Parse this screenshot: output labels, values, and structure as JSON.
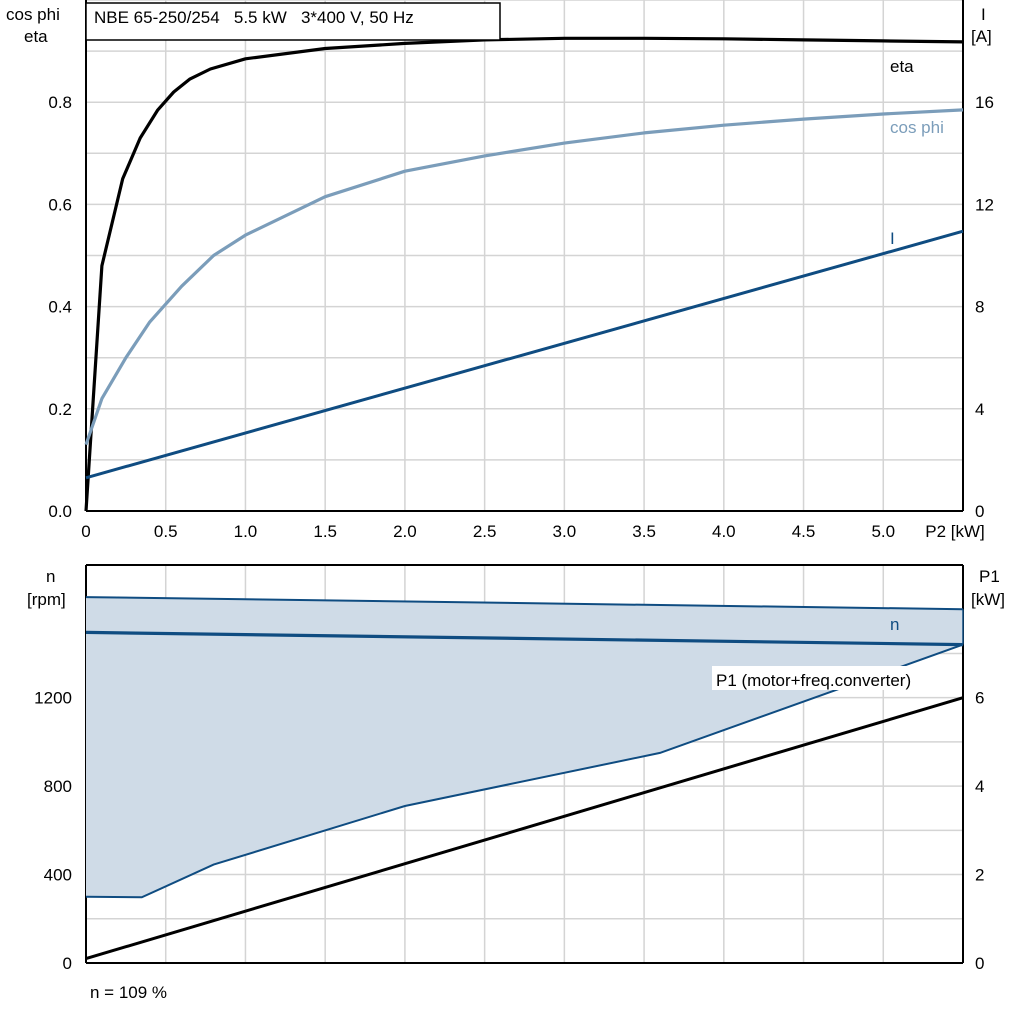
{
  "colors": {
    "eta": "#000000",
    "cos_phi": "#7b9dba",
    "current": "#0f4c81",
    "n": "#0f4c81",
    "p1": "#000000",
    "band_fill": "#cfdbe7",
    "grid": "#d4d4d4"
  },
  "note": "n = 109 %",
  "chart_data": [
    {
      "type": "line",
      "title": "NBE 65-250/254   5.5 kW   3*400 V, 50 Hz",
      "xlabel": "P2 [kW]",
      "ylabel_left": [
        "cos phi",
        "eta"
      ],
      "ylabel_right": [
        "I",
        "[A]"
      ],
      "xlim": [
        0,
        5.5
      ],
      "ylim_left": [
        0,
        1.0
      ],
      "ylim_right": [
        0,
        20
      ],
      "x_ticks": [
        "0",
        "0.5",
        "1.0",
        "1.5",
        "2.0",
        "2.5",
        "3.0",
        "3.5",
        "4.0",
        "4.5",
        "5.0",
        "P2 [kW]"
      ],
      "y_ticks_left": [
        "0.0",
        "0.2",
        "0.4",
        "0.6",
        "0.8"
      ],
      "y_ticks_right": [
        "0",
        "4",
        "8",
        "12",
        "16"
      ],
      "grid": true,
      "series": [
        {
          "name": "eta",
          "axis": "left",
          "x": [
            0,
            0.1,
            0.23,
            0.34,
            0.45,
            0.55,
            0.65,
            0.78,
            1.0,
            1.5,
            2.0,
            2.5,
            3.0,
            3.5,
            4.0,
            4.5,
            5.0,
            5.5
          ],
          "y": [
            0.0,
            0.48,
            0.65,
            0.73,
            0.785,
            0.82,
            0.845,
            0.865,
            0.885,
            0.905,
            0.915,
            0.922,
            0.925,
            0.925,
            0.924,
            0.922,
            0.92,
            0.918
          ]
        },
        {
          "name": "cos phi",
          "axis": "left",
          "x": [
            0,
            0.1,
            0.25,
            0.4,
            0.6,
            0.8,
            1.0,
            1.5,
            2.0,
            2.5,
            3.0,
            3.5,
            4.0,
            4.5,
            5.0,
            5.5
          ],
          "y": [
            0.13,
            0.22,
            0.3,
            0.37,
            0.44,
            0.5,
            0.54,
            0.615,
            0.665,
            0.695,
            0.72,
            0.74,
            0.755,
            0.767,
            0.777,
            0.785
          ]
        },
        {
          "name": "I",
          "axis": "right",
          "x": [
            0,
            5.5
          ],
          "y": [
            1.3,
            10.95
          ]
        }
      ]
    },
    {
      "type": "area",
      "xlabel": "",
      "ylabel_left": [
        "n",
        "[rpm]"
      ],
      "ylabel_right": [
        "P1",
        "[kW]"
      ],
      "xlim": [
        0,
        5.5
      ],
      "ylim_left": [
        0,
        1800
      ],
      "ylim_right": [
        0,
        9
      ],
      "y_ticks_left": [
        "0",
        "400",
        "800",
        "1200"
      ],
      "y_ticks_right": [
        "0",
        "2",
        "4",
        "6"
      ],
      "grid": true,
      "series": [
        {
          "name": "n",
          "axis": "left",
          "x": [
            0,
            5.5
          ],
          "y": [
            1495,
            1440
          ]
        },
        {
          "name": "n band upper",
          "axis": "left",
          "x": [
            0,
            5.5
          ],
          "y": [
            1655,
            1600
          ]
        },
        {
          "name": "n band lower",
          "axis": "left",
          "x": [
            0,
            0.35,
            0.8,
            2.0,
            3.6,
            5.5
          ],
          "y": [
            300,
            297,
            445,
            710,
            950,
            1440
          ]
        },
        {
          "name": "P1 (motor+freq.converter)",
          "axis": "right",
          "x": [
            0,
            5.5
          ],
          "y": [
            0.1,
            6.0
          ]
        }
      ]
    }
  ]
}
